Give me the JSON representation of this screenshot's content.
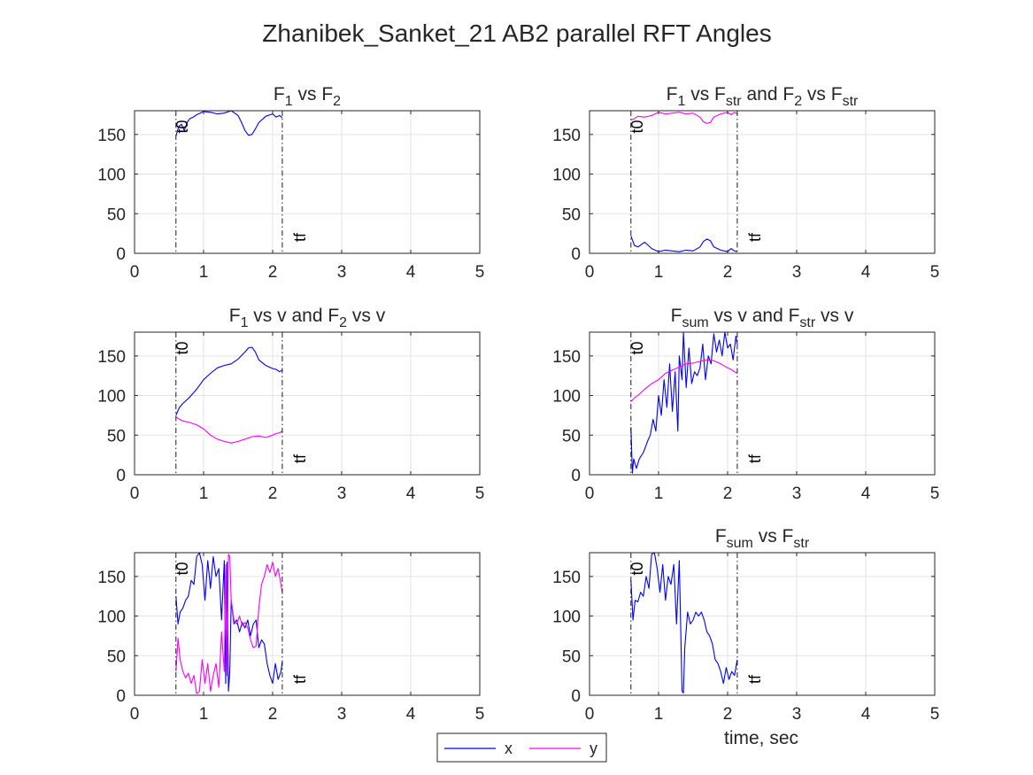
{
  "figure": {
    "title": "Zhanibek_Sanket_21 AB2 parallel RFT Angles",
    "xlabel": "time, sec"
  },
  "legend": {
    "items": [
      {
        "label": "x",
        "color": "#0000ff"
      },
      {
        "label": "y",
        "color": "#ff00ff"
      }
    ]
  },
  "colors": {
    "x": "#0000ff",
    "y": "#ff00ff",
    "grid": "#e3e3e3",
    "axis": "#262626",
    "marker": "#000000"
  },
  "chart_data": [
    {
      "type": "line",
      "title_parts": [
        [
          "F",
          ""
        ],
        [
          "1",
          "sub"
        ],
        [
          " vs F",
          ""
        ],
        [
          "2",
          "sub"
        ]
      ],
      "xlim": [
        0,
        5
      ],
      "ylim": [
        0,
        180
      ],
      "xticks": [
        0,
        1,
        2,
        3,
        4,
        5
      ],
      "yticks": [
        0,
        50,
        100,
        150
      ],
      "grid": true,
      "markers": {
        "t0": 0.6,
        "tf": 2.14,
        "t0_label": "t0",
        "tf_label": "tf"
      },
      "series": [
        {
          "key": "x",
          "x": [
            0.6,
            0.64,
            0.68,
            0.72,
            0.76,
            0.8,
            0.85,
            0.9,
            0.95,
            1.0,
            1.1,
            1.2,
            1.3,
            1.4,
            1.5,
            1.55,
            1.6,
            1.65,
            1.7,
            1.75,
            1.8,
            1.9,
            2.0,
            2.05,
            2.1,
            2.14
          ],
          "values": [
            148,
            160,
            163,
            155,
            165,
            170,
            172,
            175,
            177,
            179,
            178,
            176,
            177,
            180,
            174,
            165,
            155,
            149,
            150,
            157,
            165,
            173,
            176,
            172,
            174,
            171
          ]
        }
      ]
    },
    {
      "type": "line",
      "title_parts": [
        [
          "F",
          ""
        ],
        [
          "1",
          "sub"
        ],
        [
          " vs F",
          ""
        ],
        [
          "str",
          "sub"
        ],
        [
          " and F",
          ""
        ],
        [
          "2",
          "sub"
        ],
        [
          " vs F",
          ""
        ],
        [
          "str",
          "sub"
        ]
      ],
      "xlim": [
        0,
        5
      ],
      "ylim": [
        0,
        180
      ],
      "xticks": [
        0,
        1,
        2,
        3,
        4,
        5
      ],
      "yticks": [
        0,
        50,
        100,
        150
      ],
      "grid": true,
      "markers": {
        "t0": 0.6,
        "tf": 2.14,
        "t0_label": "t0",
        "tf_label": "tf"
      },
      "series": [
        {
          "key": "x",
          "x": [
            0.6,
            0.65,
            0.7,
            0.8,
            0.9,
            1.0,
            1.1,
            1.2,
            1.3,
            1.4,
            1.5,
            1.6,
            1.65,
            1.7,
            1.75,
            1.8,
            1.9,
            2.0,
            2.05,
            2.1,
            2.14
          ],
          "values": [
            22,
            10,
            8,
            14,
            6,
            2,
            4,
            3,
            2,
            4,
            3,
            8,
            15,
            18,
            16,
            8,
            4,
            2,
            6,
            3,
            2
          ]
        },
        {
          "key": "y",
          "x": [
            0.6,
            0.65,
            0.7,
            0.8,
            0.9,
            1.0,
            1.1,
            1.2,
            1.3,
            1.4,
            1.5,
            1.6,
            1.65,
            1.7,
            1.75,
            1.8,
            1.9,
            2.0,
            2.05,
            2.1,
            2.14
          ],
          "values": [
            168,
            170,
            173,
            172,
            174,
            178,
            176,
            177,
            178,
            176,
            177,
            172,
            166,
            164,
            165,
            172,
            176,
            178,
            175,
            178,
            176
          ]
        }
      ]
    },
    {
      "type": "line",
      "title_parts": [
        [
          "F",
          ""
        ],
        [
          "1",
          "sub"
        ],
        [
          " vs v and F",
          ""
        ],
        [
          "2",
          "sub"
        ],
        [
          " vs v",
          ""
        ]
      ],
      "xlim": [
        0,
        5
      ],
      "ylim": [
        0,
        180
      ],
      "xticks": [
        0,
        1,
        2,
        3,
        4,
        5
      ],
      "yticks": [
        0,
        50,
        100,
        150
      ],
      "grid": true,
      "markers": {
        "t0": 0.6,
        "tf": 2.14,
        "t0_label": "t0",
        "tf_label": "tf"
      },
      "series": [
        {
          "key": "x",
          "x": [
            0.6,
            0.65,
            0.7,
            0.8,
            0.9,
            1.0,
            1.1,
            1.2,
            1.3,
            1.4,
            1.5,
            1.6,
            1.65,
            1.7,
            1.75,
            1.8,
            1.9,
            2.0,
            2.05,
            2.1,
            2.14
          ],
          "values": [
            75,
            85,
            90,
            98,
            108,
            120,
            128,
            135,
            138,
            140,
            146,
            155,
            160,
            161,
            155,
            145,
            138,
            134,
            133,
            130,
            132
          ]
        },
        {
          "key": "y",
          "x": [
            0.6,
            0.65,
            0.7,
            0.8,
            0.9,
            1.0,
            1.1,
            1.2,
            1.3,
            1.4,
            1.5,
            1.6,
            1.7,
            1.8,
            1.9,
            2.0,
            2.05,
            2.1,
            2.14
          ],
          "values": [
            73,
            70,
            68,
            66,
            63,
            58,
            50,
            45,
            42,
            40,
            42,
            45,
            48,
            49,
            47,
            50,
            52,
            53,
            55
          ]
        }
      ]
    },
    {
      "type": "line",
      "title_parts": [
        [
          "F",
          ""
        ],
        [
          "sum",
          "sub"
        ],
        [
          " vs v and F",
          ""
        ],
        [
          "str",
          "sub"
        ],
        [
          " vs v",
          ""
        ]
      ],
      "xlim": [
        0,
        5
      ],
      "ylim": [
        0,
        180
      ],
      "xticks": [
        0,
        1,
        2,
        3,
        4,
        5
      ],
      "yticks": [
        0,
        50,
        100,
        150
      ],
      "grid": true,
      "markers": {
        "t0": 0.6,
        "tf": 2.14,
        "t0_label": "t0",
        "tf_label": "tf"
      },
      "series": [
        {
          "key": "x",
          "x": [
            0.6,
            0.62,
            0.64,
            0.68,
            0.72,
            0.78,
            0.84,
            0.88,
            0.92,
            0.96,
            1.0,
            1.04,
            1.08,
            1.12,
            1.16,
            1.2,
            1.24,
            1.28,
            1.3,
            1.34,
            1.36,
            1.4,
            1.44,
            1.48,
            1.52,
            1.56,
            1.6,
            1.64,
            1.68,
            1.72,
            1.76,
            1.8,
            1.84,
            1.88,
            1.92,
            1.96,
            2.0,
            2.04,
            2.08,
            2.12,
            2.14
          ],
          "values": [
            60,
            2,
            20,
            8,
            20,
            28,
            42,
            50,
            70,
            55,
            100,
            75,
            120,
            85,
            140,
            80,
            130,
            55,
            150,
            120,
            180,
            110,
            160,
            115,
            130,
            125,
            135,
            165,
            120,
            150,
            140,
            178,
            155,
            170,
            150,
            180,
            160,
            165,
            145,
            175,
            165
          ]
        },
        {
          "key": "y",
          "x": [
            0.6,
            0.65,
            0.7,
            0.8,
            0.9,
            1.0,
            1.1,
            1.2,
            1.3,
            1.4,
            1.5,
            1.6,
            1.7,
            1.8,
            1.9,
            2.0,
            2.05,
            2.1,
            2.14
          ],
          "values": [
            92,
            97,
            100,
            108,
            115,
            120,
            128,
            132,
            136,
            140,
            141,
            143,
            145,
            144,
            140,
            135,
            133,
            130,
            128
          ]
        }
      ]
    },
    {
      "type": "line",
      "title_parts": [],
      "xlim": [
        0,
        5
      ],
      "ylim": [
        0,
        180
      ],
      "xticks": [
        0,
        1,
        2,
        3,
        4,
        5
      ],
      "yticks": [
        0,
        50,
        100,
        150
      ],
      "grid": true,
      "markers": {
        "t0": 0.6,
        "tf": 2.14,
        "t0_label": "t0",
        "tf_label": "tf"
      },
      "series": [
        {
          "key": "x",
          "x": [
            0.6,
            0.63,
            0.66,
            0.7,
            0.74,
            0.78,
            0.82,
            0.86,
            0.9,
            0.94,
            0.98,
            1.02,
            1.06,
            1.1,
            1.14,
            1.18,
            1.22,
            1.26,
            1.3,
            1.32,
            1.34,
            1.36,
            1.38,
            1.4,
            1.44,
            1.48,
            1.52,
            1.56,
            1.6,
            1.64,
            1.68,
            1.72,
            1.76,
            1.8,
            1.84,
            1.88,
            1.92,
            1.96,
            2.0,
            2.04,
            2.08,
            2.12,
            2.14
          ],
          "values": [
            125,
            90,
            105,
            110,
            120,
            125,
            145,
            140,
            175,
            180,
            165,
            120,
            170,
            135,
            175,
            150,
            160,
            95,
            170,
            15,
            168,
            5,
            30,
            120,
            90,
            95,
            80,
            92,
            85,
            95,
            75,
            90,
            95,
            60,
            70,
            65,
            40,
            25,
            15,
            40,
            20,
            30,
            42
          ]
        },
        {
          "key": "y",
          "x": [
            0.6,
            0.63,
            0.66,
            0.7,
            0.74,
            0.78,
            0.82,
            0.86,
            0.9,
            0.94,
            0.98,
            1.02,
            1.06,
            1.1,
            1.14,
            1.18,
            1.22,
            1.26,
            1.3,
            1.32,
            1.34,
            1.36,
            1.38,
            1.4,
            1.44,
            1.48,
            1.52,
            1.56,
            1.6,
            1.64,
            1.68,
            1.72,
            1.76,
            1.8,
            1.84,
            1.88,
            1.92,
            1.96,
            2.0,
            2.04,
            2.08,
            2.12,
            2.14
          ],
          "values": [
            30,
            72,
            45,
            30,
            22,
            28,
            15,
            25,
            2,
            5,
            45,
            15,
            40,
            5,
            25,
            40,
            10,
            80,
            30,
            165,
            25,
            178,
            175,
            120,
            95,
            90,
            100,
            88,
            92,
            85,
            70,
            60,
            62,
            110,
            140,
            150,
            165,
            155,
            168,
            150,
            160,
            140,
            130
          ]
        }
      ]
    },
    {
      "type": "line",
      "title_parts": [
        [
          "F",
          ""
        ],
        [
          "sum",
          "sub"
        ],
        [
          " vs F",
          ""
        ],
        [
          "str",
          "sub"
        ]
      ],
      "xlim": [
        0,
        5
      ],
      "ylim": [
        0,
        180
      ],
      "xticks": [
        0,
        1,
        2,
        3,
        4,
        5
      ],
      "yticks": [
        0,
        50,
        100,
        150
      ],
      "grid": true,
      "markers": {
        "t0": 0.6,
        "tf": 2.14,
        "t0_label": "t0",
        "tf_label": "tf"
      },
      "series": [
        {
          "key": "x",
          "x": [
            0.6,
            0.63,
            0.66,
            0.7,
            0.74,
            0.78,
            0.82,
            0.86,
            0.9,
            0.94,
            0.98,
            1.02,
            1.06,
            1.1,
            1.14,
            1.18,
            1.22,
            1.26,
            1.3,
            1.34,
            1.36,
            1.38,
            1.42,
            1.46,
            1.5,
            1.54,
            1.58,
            1.62,
            1.66,
            1.7,
            1.74,
            1.78,
            1.82,
            1.86,
            1.9,
            1.94,
            1.98,
            2.02,
            2.06,
            2.1,
            2.14
          ],
          "values": [
            145,
            95,
            120,
            118,
            130,
            125,
            150,
            135,
            178,
            180,
            160,
            130,
            165,
            120,
            150,
            140,
            165,
            90,
            170,
            5,
            3,
            60,
            105,
            90,
            95,
            105,
            100,
            105,
            95,
            80,
            75,
            65,
            45,
            40,
            30,
            15,
            35,
            20,
            30,
            25,
            45
          ]
        }
      ]
    }
  ]
}
